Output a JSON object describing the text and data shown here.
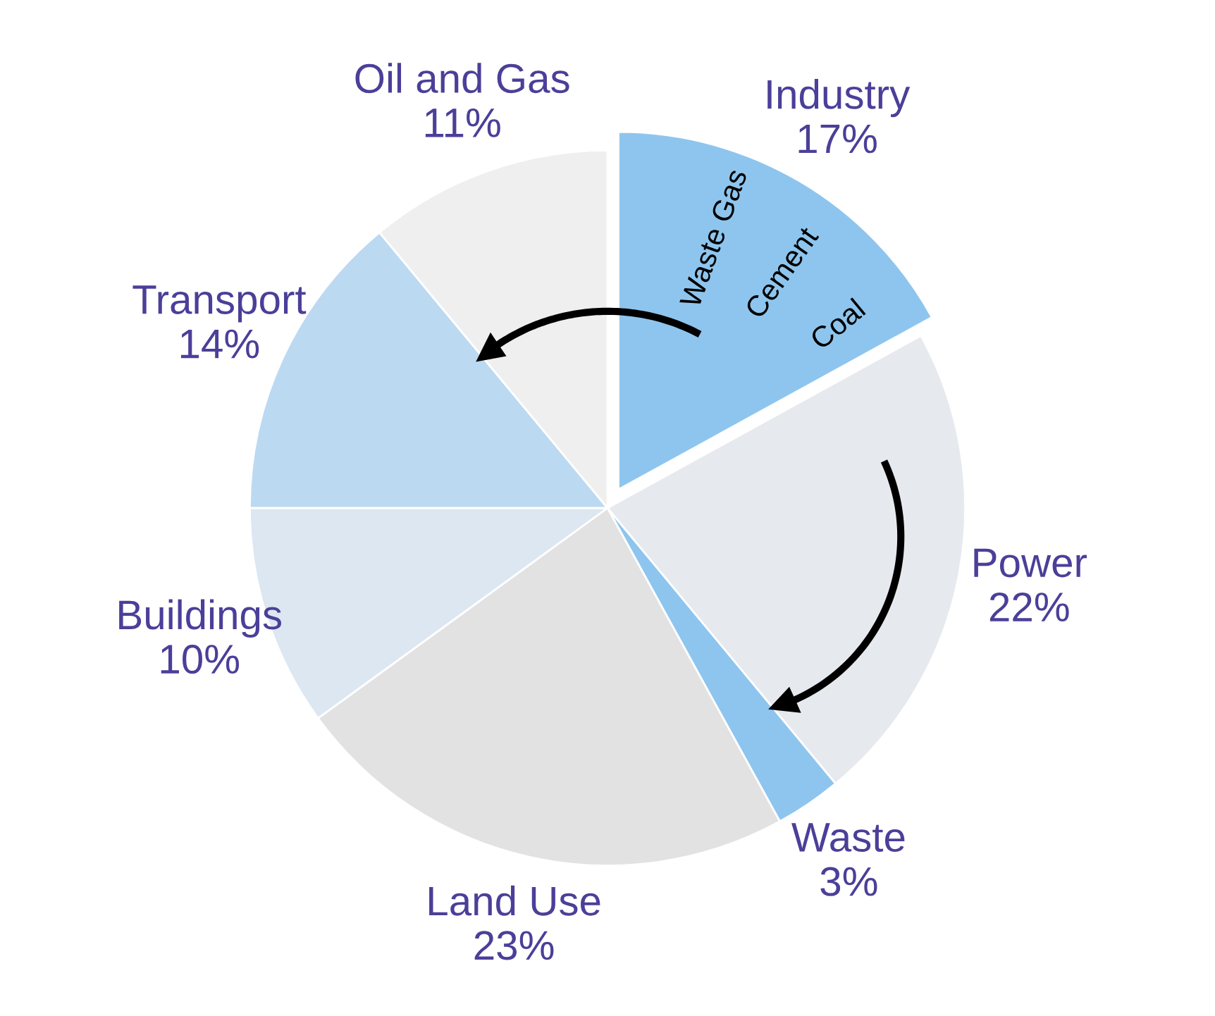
{
  "chart_data": {
    "type": "pie",
    "categories": [
      "Industry",
      "Power",
      "Waste",
      "Land Use",
      "Buildings",
      "Transport",
      "Oil and Gas"
    ],
    "values": [
      17,
      22,
      3,
      23,
      10,
      14,
      11
    ],
    "value_labels": [
      "17%",
      "22%",
      "3%",
      "23%",
      "10%",
      "14%",
      "11%"
    ],
    "colors": [
      "#8ec5ee",
      "#e6e9ee",
      "#8ec5ee",
      "#e2e2e2",
      "#dde7f1",
      "#bcd9f2",
      "#efefef"
    ],
    "annotations": [
      "Waste Gas",
      "Cement",
      "Coal"
    ],
    "legend": false
  }
}
